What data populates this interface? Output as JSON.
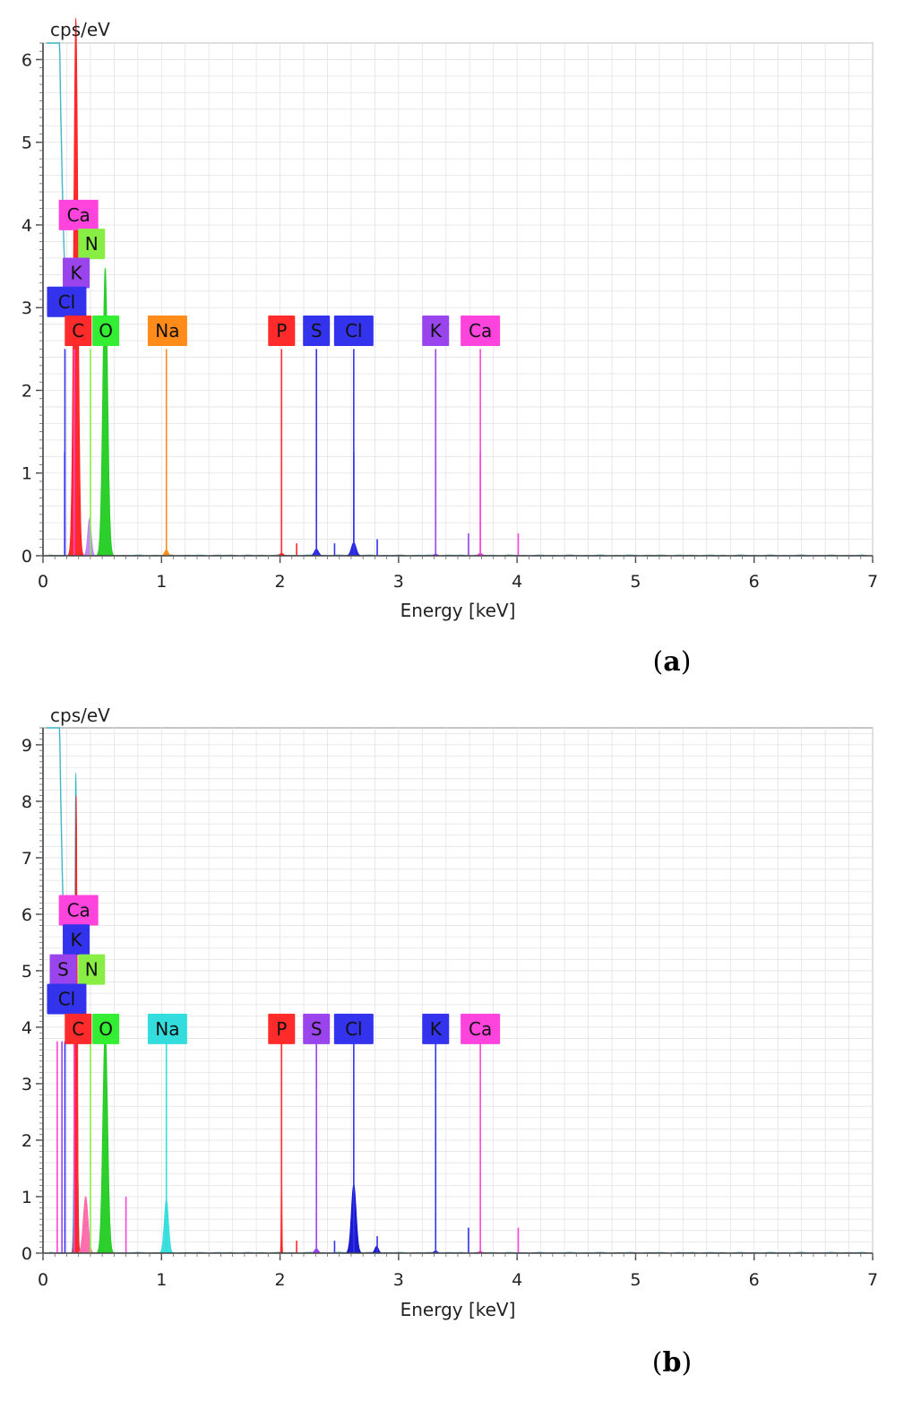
{
  "chart_data": [
    {
      "type": "area",
      "panel_label": {
        "open": "(",
        "letter": "a",
        "close": ")"
      },
      "ylabel": "cps/eV",
      "xlabel": "Energy [keV]",
      "xlim": [
        0,
        7
      ],
      "ylim": [
        0,
        6.2
      ],
      "xticks": [
        "0",
        "1",
        "2",
        "3",
        "4",
        "5",
        "6",
        "7"
      ],
      "yticks": [
        "0",
        "1",
        "2",
        "3",
        "4",
        "5",
        "6"
      ],
      "grid": true,
      "peaks": [
        {
          "element": "C",
          "energy": 0.277,
          "height": 6.5,
          "width": 0.035,
          "color": "#ff2020"
        },
        {
          "element": "N",
          "energy": 0.392,
          "height": 0.45,
          "width": 0.03,
          "color": "#c080ff"
        },
        {
          "element": "O",
          "energy": 0.525,
          "height": 3.48,
          "width": 0.04,
          "color": "#22cc22"
        },
        {
          "element": "Na",
          "energy": 1.041,
          "height": 0.07,
          "width": 0.03,
          "color": "#ff8c1a"
        },
        {
          "element": "P",
          "energy": 2.013,
          "height": 0.03,
          "width": 0.03,
          "color": "#ff2020"
        },
        {
          "element": "S",
          "energy": 2.307,
          "height": 0.08,
          "width": 0.035,
          "color": "#2222dd"
        },
        {
          "element": "Cl",
          "energy": 2.622,
          "height": 0.16,
          "width": 0.04,
          "color": "#2222dd"
        },
        {
          "element": "K",
          "energy": 3.313,
          "height": 0.02,
          "width": 0.03,
          "color": "#9933ff"
        },
        {
          "element": "Ca",
          "energy": 3.69,
          "height": 0.03,
          "width": 0.03,
          "color": "#ff22cc"
        }
      ],
      "labels": [
        {
          "text": "Ca",
          "energy": 0.3,
          "y": 4.12,
          "color": "#ff44dd"
        },
        {
          "text": "N",
          "energy": 0.41,
          "y": 3.77,
          "color": "#88ee44"
        },
        {
          "text": "K",
          "energy": 0.28,
          "y": 3.42,
          "color": "#9a44ee"
        },
        {
          "text": "Cl",
          "energy": 0.2,
          "y": 3.07,
          "color": "#3333ee"
        },
        {
          "text": "C",
          "energy": 0.297,
          "y": 2.72,
          "color": "#ff2a2a"
        },
        {
          "text": "O",
          "energy": 0.53,
          "y": 2.72,
          "color": "#33ee33"
        },
        {
          "text": "Na",
          "energy": 1.05,
          "y": 2.72,
          "color": "#ff8c1a"
        },
        {
          "text": "P",
          "energy": 2.013,
          "y": 2.72,
          "color": "#ff2a2a"
        },
        {
          "text": "S",
          "energy": 2.307,
          "y": 2.72,
          "color": "#3333ee"
        },
        {
          "text": "Cl",
          "energy": 2.622,
          "y": 2.72,
          "color": "#3333ee"
        },
        {
          "text": "K",
          "energy": 3.313,
          "y": 2.72,
          "color": "#9a44ee"
        },
        {
          "text": "Ca",
          "energy": 3.69,
          "y": 2.72,
          "color": "#ff44dd"
        }
      ],
      "markers": [
        {
          "energy": 0.185,
          "top": 2.5,
          "color": "#3333ee"
        },
        {
          "energy": 0.263,
          "top": 2.5,
          "color": "#ff44dd"
        },
        {
          "energy": 0.29,
          "top": 2.5,
          "color": "#ff2a2a"
        },
        {
          "energy": 0.4,
          "top": 2.5,
          "color": "#88ee44"
        },
        {
          "energy": 1.041,
          "top": 2.5,
          "color": "#ff8c1a"
        },
        {
          "energy": 2.013,
          "top": 2.5,
          "color": "#ff2a2a"
        },
        {
          "energy": 2.307,
          "top": 2.5,
          "color": "#3333ee"
        },
        {
          "energy": 2.622,
          "top": 2.5,
          "color": "#3333ee"
        },
        {
          "energy": 3.313,
          "top": 2.5,
          "color": "#9a44ee"
        },
        {
          "energy": 3.69,
          "top": 2.5,
          "color": "#ff44dd"
        },
        {
          "energy": 0.183,
          "top": 1.25,
          "color": "#3333ee"
        },
        {
          "energy": 2.622,
          "top": 1.25,
          "color": "#3333ee"
        },
        {
          "energy": 3.69,
          "top": 1.25,
          "color": "#ff44dd"
        },
        {
          "energy": 2.14,
          "top": 0.15,
          "color": "#ff2a2a"
        },
        {
          "energy": 2.46,
          "top": 0.15,
          "color": "#3333ee"
        },
        {
          "energy": 2.82,
          "top": 0.2,
          "color": "#3333ee"
        },
        {
          "energy": 3.59,
          "top": 0.27,
          "color": "#9a44ee"
        },
        {
          "energy": 4.01,
          "top": 0.27,
          "color": "#ff44dd"
        }
      ]
    },
    {
      "type": "area",
      "panel_label": {
        "open": "(",
        "letter": "b",
        "close": ")"
      },
      "ylabel": "cps/eV",
      "xlabel": "Energy [keV]",
      "xlim": [
        0,
        7
      ],
      "ylim": [
        0,
        9.3
      ],
      "xticks": [
        "0",
        "1",
        "2",
        "3",
        "4",
        "5",
        "6",
        "7"
      ],
      "yticks": [
        "0",
        "1",
        "2",
        "3",
        "4",
        "5",
        "6",
        "7",
        "8",
        "9"
      ],
      "grid": true,
      "peaks": [
        {
          "element": "C",
          "energy": 0.277,
          "height": 8.5,
          "width": 0.02,
          "color": "#22bbcc"
        },
        {
          "element": "C",
          "energy": 0.28,
          "height": 8.1,
          "width": 0.017,
          "color": "#ff2020"
        },
        {
          "element": "N",
          "energy": 0.36,
          "height": 1.0,
          "width": 0.04,
          "color": "#ff66aa"
        },
        {
          "element": "O",
          "energy": 0.525,
          "height": 4.0,
          "width": 0.04,
          "color": "#22cc22"
        },
        {
          "element": "Na",
          "energy": 1.041,
          "height": 0.95,
          "width": 0.035,
          "color": "#33dddd"
        },
        {
          "element": "P",
          "energy": 2.013,
          "height": 1.8,
          "width": 0.006,
          "color": "#ff2020"
        },
        {
          "element": "S",
          "energy": 2.307,
          "height": 0.08,
          "width": 0.03,
          "color": "#9933ff"
        },
        {
          "element": "Cl",
          "energy": 2.622,
          "height": 1.22,
          "width": 0.04,
          "color": "#1111cc"
        },
        {
          "element": "Cl",
          "energy": 2.815,
          "height": 0.12,
          "width": 0.03,
          "color": "#1111cc"
        },
        {
          "element": "K",
          "energy": 3.313,
          "height": 0.04,
          "width": 0.03,
          "color": "#2222dd"
        },
        {
          "element": "Ca",
          "energy": 3.69,
          "height": 0.03,
          "width": 0.03,
          "color": "#ff22cc"
        }
      ],
      "labels": [
        {
          "text": "Ca",
          "energy": 0.3,
          "y": 6.07,
          "color": "#ff44dd"
        },
        {
          "text": "K",
          "energy": 0.28,
          "y": 5.55,
          "color": "#3333ee"
        },
        {
          "text": "S",
          "energy": 0.17,
          "y": 5.02,
          "color": "#9a44ee"
        },
        {
          "text": "N",
          "energy": 0.41,
          "y": 5.02,
          "color": "#88ee44"
        },
        {
          "text": "Cl",
          "energy": 0.2,
          "y": 4.5,
          "color": "#3333ee"
        },
        {
          "text": "C",
          "energy": 0.297,
          "y": 3.97,
          "color": "#ff2a2a"
        },
        {
          "text": "O",
          "energy": 0.53,
          "y": 3.97,
          "color": "#33ee33"
        },
        {
          "text": "Na",
          "energy": 1.05,
          "y": 3.97,
          "color": "#33dddd"
        },
        {
          "text": "P",
          "energy": 2.013,
          "y": 3.97,
          "color": "#ff2a2a"
        },
        {
          "text": "S",
          "energy": 2.307,
          "y": 3.97,
          "color": "#9a44ee"
        },
        {
          "text": "Cl",
          "energy": 2.622,
          "y": 3.97,
          "color": "#3333ee"
        },
        {
          "text": "K",
          "energy": 3.313,
          "y": 3.97,
          "color": "#3333ee"
        },
        {
          "text": "Ca",
          "energy": 3.69,
          "y": 3.97,
          "color": "#ff44dd"
        }
      ],
      "markers": [
        {
          "energy": 0.12,
          "top": 3.75,
          "color": "#ff44dd"
        },
        {
          "energy": 0.16,
          "top": 3.75,
          "color": "#9a44ee"
        },
        {
          "energy": 0.185,
          "top": 3.75,
          "color": "#3333ee"
        },
        {
          "energy": 0.263,
          "top": 3.75,
          "color": "#ff44dd"
        },
        {
          "energy": 0.29,
          "top": 3.75,
          "color": "#ff2a2a"
        },
        {
          "energy": 0.4,
          "top": 3.75,
          "color": "#88ee44"
        },
        {
          "energy": 1.041,
          "top": 3.75,
          "color": "#33dddd"
        },
        {
          "energy": 2.013,
          "top": 3.75,
          "color": "#ff2a2a"
        },
        {
          "energy": 2.307,
          "top": 3.75,
          "color": "#9a44ee"
        },
        {
          "energy": 2.622,
          "top": 3.75,
          "color": "#3333ee"
        },
        {
          "energy": 3.313,
          "top": 3.75,
          "color": "#3333ee"
        },
        {
          "energy": 3.69,
          "top": 3.75,
          "color": "#ff44dd"
        },
        {
          "energy": 0.7,
          "top": 1.0,
          "color": "#ff44dd"
        },
        {
          "energy": 2.14,
          "top": 0.22,
          "color": "#ff2a2a"
        },
        {
          "energy": 2.46,
          "top": 0.22,
          "color": "#3333ee"
        },
        {
          "energy": 2.82,
          "top": 0.3,
          "color": "#3333ee"
        },
        {
          "energy": 3.59,
          "top": 0.45,
          "color": "#3333ee"
        },
        {
          "energy": 4.01,
          "top": 0.45,
          "color": "#ff44dd"
        }
      ]
    }
  ]
}
